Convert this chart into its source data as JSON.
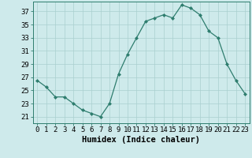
{
  "x": [
    0,
    1,
    2,
    3,
    4,
    5,
    6,
    7,
    8,
    9,
    10,
    11,
    12,
    13,
    14,
    15,
    16,
    17,
    18,
    19,
    20,
    21,
    22,
    23
  ],
  "y": [
    26.5,
    25.5,
    24.0,
    24.0,
    23.0,
    22.0,
    21.5,
    21.0,
    23.0,
    27.5,
    30.5,
    33.0,
    35.5,
    36.0,
    36.5,
    36.0,
    38.0,
    37.5,
    36.5,
    34.0,
    33.0,
    29.0,
    26.5,
    24.5
  ],
  "line_color": "#2e7d6e",
  "marker_color": "#2e7d6e",
  "bg_color": "#ceeaeb",
  "grid_color": "#aacfcf",
  "xlabel": "Humidex (Indice chaleur)",
  "xlim": [
    -0.5,
    23.5
  ],
  "ylim": [
    20.0,
    38.5
  ],
  "yticks": [
    21,
    23,
    25,
    27,
    29,
    31,
    33,
    35,
    37
  ],
  "xtick_labels": [
    "0",
    "1",
    "2",
    "3",
    "4",
    "5",
    "6",
    "7",
    "8",
    "9",
    "10",
    "11",
    "12",
    "13",
    "14",
    "15",
    "16",
    "17",
    "18",
    "19",
    "20",
    "21",
    "22",
    "23"
  ],
  "tick_fontsize": 6.5,
  "label_fontsize": 7.5
}
